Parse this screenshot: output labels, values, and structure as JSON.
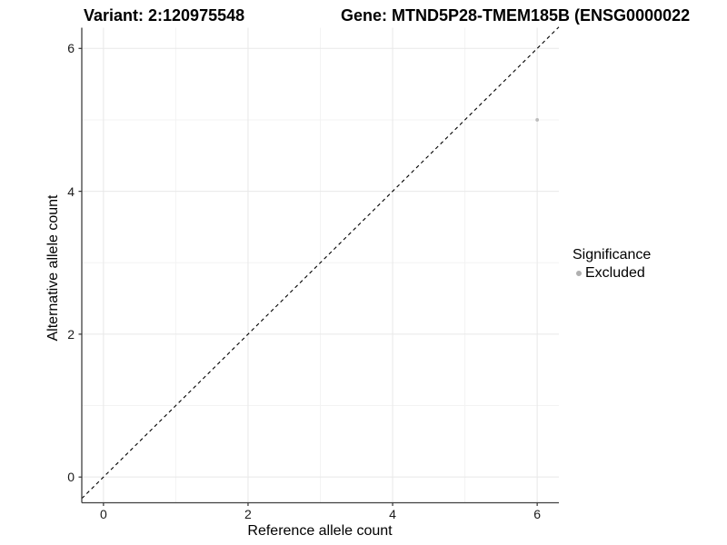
{
  "header": {
    "variant_title": "Variant: 2:120975548",
    "gene_title": "Gene: MTND5P28-TMEM185B (ENSG0000022"
  },
  "legend": {
    "title": "Significance",
    "items": [
      {
        "label": "Excluded",
        "color": "#b0b0b0",
        "marker": "circle-icon"
      }
    ]
  },
  "chart_data": {
    "type": "scatter",
    "title": "Variant: 2:120975548",
    "subtitle": "Gene: MTND5P28-TMEM185B (ENSG0000022",
    "xlabel": "Reference allele count",
    "ylabel": "Alternative allele count",
    "xlim": [
      -0.3,
      6.3
    ],
    "ylim": [
      -0.36,
      6.29
    ],
    "x_ticks": [
      "0",
      "2",
      "4",
      "6"
    ],
    "y_ticks": [
      "0",
      "2",
      "4",
      "6"
    ],
    "x_tick_values": [
      0,
      2,
      4,
      6
    ],
    "y_tick_values": [
      0,
      2,
      4,
      6
    ],
    "x_minor_ticks": [
      1,
      3,
      5
    ],
    "y_minor_ticks": [
      1,
      3,
      5
    ],
    "grid": true,
    "legend_position": "right",
    "series": [
      {
        "name": "Excluded",
        "color": "#bdbdbd",
        "points": [
          {
            "x": 6,
            "y": 5
          }
        ]
      }
    ],
    "reference_line": {
      "type": "identity",
      "slope": 1,
      "intercept": 0,
      "style": "dashed",
      "color": "#000000"
    }
  },
  "colors": {
    "background": "#ffffff",
    "grid_major": "#e8e8e8",
    "grid_minor": "#f3f3f3",
    "axis_line": "#404040",
    "tick_mark": "#333333",
    "axis_text": "#1a1a1a",
    "title_text": "#000000",
    "point": "#bdbdbd",
    "legend_marker": "#b0b0b0"
  }
}
